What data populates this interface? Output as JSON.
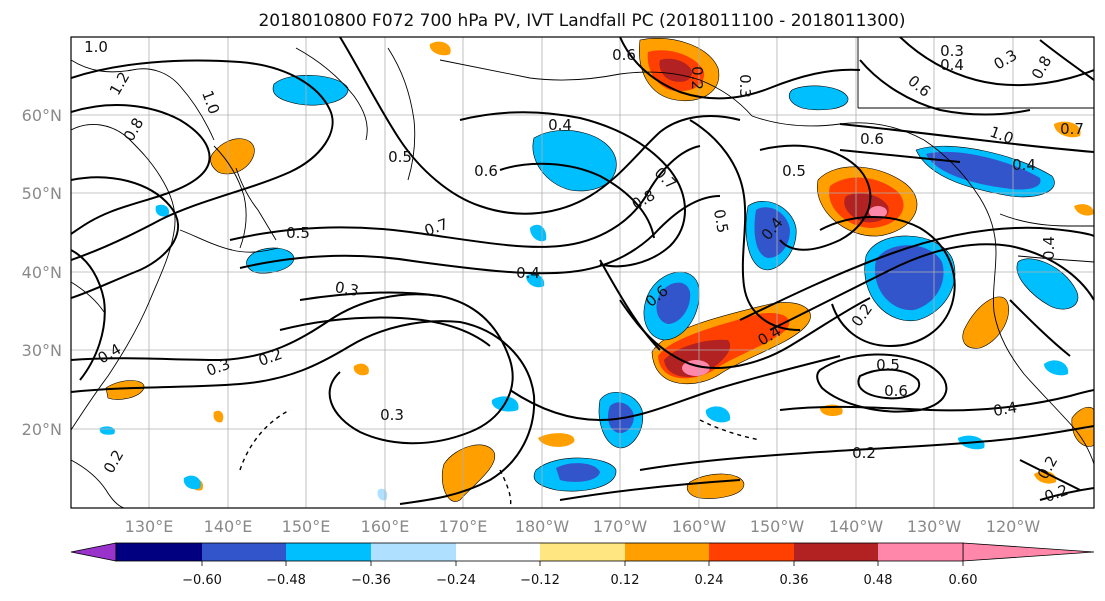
{
  "title": "2018010800 F072 700 hPa PV, IVT Landfall PC (2018011100 - 2018011300)",
  "lon_labels": [
    "130°E",
    "140°E",
    "150°E",
    "160°E",
    "170°E",
    "180°W",
    "170°W",
    "160°W",
    "150°W",
    "140°W",
    "130°W",
    "120°W"
  ],
  "lat_labels": [
    "60°N",
    "50°N",
    "40°N",
    "30°N",
    "20°N"
  ],
  "colorbar": {
    "tick_labels": [
      "−0.60",
      "−0.48",
      "−0.36",
      "−0.24",
      "−0.12",
      "0.12",
      "0.24",
      "0.36",
      "0.48",
      "0.60"
    ],
    "colors": [
      "#9933cc",
      "#000080",
      "#3355cc",
      "#00bfff",
      "#b0e0ff",
      "#ffffff",
      "#ffe680",
      "#ffa000",
      "#ff4000",
      "#b22222",
      "#ff88aa"
    ]
  },
  "contour_labels": [
    {
      "text": "1.0"
    },
    {
      "text": "1.2"
    },
    {
      "text": "0.8"
    },
    {
      "text": "1.0"
    },
    {
      "text": "0.5"
    },
    {
      "text": "0.4"
    },
    {
      "text": "0.6"
    },
    {
      "text": "0.7"
    },
    {
      "text": "0.8"
    },
    {
      "text": "0.5"
    },
    {
      "text": "0.7"
    },
    {
      "text": "0.5"
    },
    {
      "text": "0.3"
    },
    {
      "text": "0.4"
    },
    {
      "text": "0.6"
    },
    {
      "text": "0.4"
    },
    {
      "text": "0.2"
    },
    {
      "text": "0.3"
    },
    {
      "text": "0.3"
    },
    {
      "text": "0.2"
    },
    {
      "text": "0.5"
    },
    {
      "text": "0.6"
    },
    {
      "text": "0.4"
    },
    {
      "text": "0.2"
    },
    {
      "text": "0.2"
    },
    {
      "text": "0.5"
    },
    {
      "text": "0.4"
    },
    {
      "text": "0.6"
    },
    {
      "text": "0.4"
    },
    {
      "text": "0.3"
    },
    {
      "text": "0.4"
    },
    {
      "text": "1.0"
    },
    {
      "text": "0.7"
    },
    {
      "text": "0.6"
    },
    {
      "text": "0.3"
    },
    {
      "text": "0.4"
    },
    {
      "text": "0.8"
    },
    {
      "text": "0.6"
    },
    {
      "text": "0.2"
    },
    {
      "text": "0.3"
    },
    {
      "text": "0.2"
    },
    {
      "text": "0.4"
    },
    {
      "text": "0.2"
    }
  ]
}
